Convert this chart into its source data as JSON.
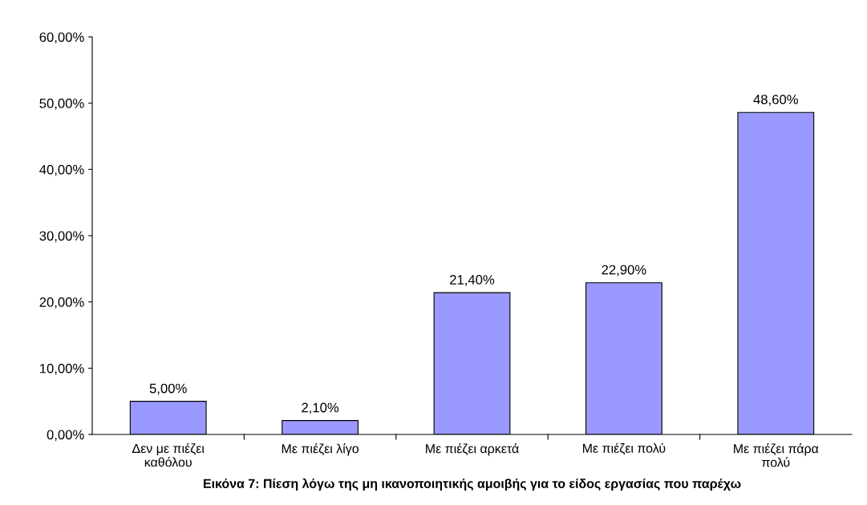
{
  "chart_data": {
    "type": "bar",
    "xlabel": "Εικόνα 7: Πίεση λόγω της μη ικανοποιητικής αμοιβής για το είδος εργασίας που παρέχω",
    "categories": [
      "Δεν με πιέζει\nκαθόλου",
      "Με πιέζει λίγο",
      "Με πιέζει αρκετά",
      "Με πιέζει πολύ",
      "Με πιέζει πάρα\nπολύ"
    ],
    "values": [
      5.0,
      2.1,
      21.4,
      22.9,
      48.6
    ],
    "value_labels": [
      "5,00%",
      "2,10%",
      "21,40%",
      "22,90%",
      "48,60%"
    ],
    "color": "#9999ff",
    "ylim": [
      0,
      60
    ],
    "yticks": [
      {
        "value": 0,
        "label": "0,00%"
      },
      {
        "value": 10,
        "label": "10,00%"
      },
      {
        "value": 20,
        "label": "20,00%"
      },
      {
        "value": 30,
        "label": "30,00%"
      },
      {
        "value": 40,
        "label": "40,00%"
      },
      {
        "value": 50,
        "label": "50,00%"
      },
      {
        "value": 60,
        "label": "60,00%"
      }
    ],
    "grid": false,
    "legend": false
  }
}
